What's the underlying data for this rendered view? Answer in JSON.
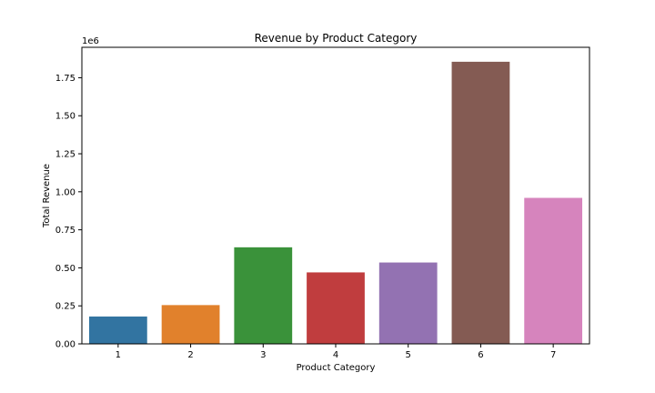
{
  "chart_data": {
    "type": "bar",
    "title": "Revenue by Product Category",
    "xlabel": "Product Category",
    "ylabel": "Total Revenue",
    "categories": [
      "1",
      "2",
      "3",
      "4",
      "5",
      "6",
      "7"
    ],
    "values": [
      180000,
      255000,
      635000,
      470000,
      535000,
      1855000,
      960000
    ],
    "colors": [
      "#3274a1",
      "#e1812c",
      "#3a923a",
      "#c03d3e",
      "#9372b2",
      "#845b53",
      "#d684bd"
    ],
    "ylim": [
      0,
      1950000
    ],
    "yticks": [
      0,
      250000,
      500000,
      750000,
      1000000,
      1250000,
      1500000,
      1750000
    ],
    "ytick_labels": [
      "0.00",
      "0.25",
      "0.50",
      "0.75",
      "1.00",
      "1.25",
      "1.50",
      "1.75"
    ],
    "y_offset_label": "1e6",
    "grid": false,
    "legend": "none"
  }
}
